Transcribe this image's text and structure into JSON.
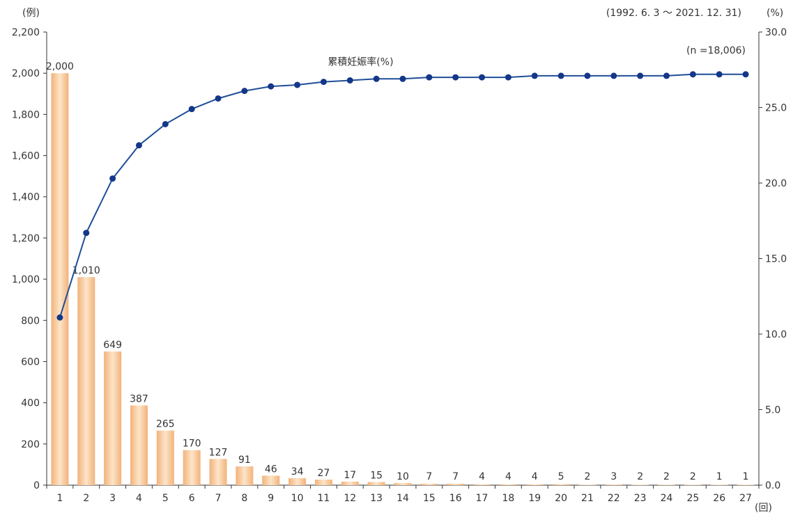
{
  "chart_data": {
    "type": "bar",
    "title": "",
    "period_note": "(1992. 6. 3 ～ 2021. 12. 31)",
    "sample_note": "(n =18,006)",
    "xlabel": "(回)",
    "ylabel_left": "(例)",
    "ylabel_right": "(%)",
    "categories": [
      "1",
      "2",
      "3",
      "4",
      "5",
      "6",
      "7",
      "8",
      "9",
      "10",
      "11",
      "12",
      "13",
      "14",
      "15",
      "16",
      "17",
      "18",
      "19",
      "20",
      "21",
      "22",
      "23",
      "24",
      "25",
      "26",
      "27"
    ],
    "series": [
      {
        "kind": "bar",
        "axis": "left",
        "values": [
          2000,
          1010,
          649,
          387,
          265,
          170,
          127,
          91,
          46,
          34,
          27,
          17,
          15,
          10,
          7,
          7,
          4,
          4,
          4,
          5,
          2,
          3,
          2,
          2,
          2,
          1,
          1
        ],
        "data_labels": [
          "2,000",
          "1,010",
          "649",
          "387",
          "265",
          "170",
          "127",
          "91",
          "46",
          "34",
          "27",
          "17",
          "15",
          "10",
          "7",
          "7",
          "4",
          "4",
          "4",
          "5",
          "2",
          "3",
          "2",
          "2",
          "2",
          "1",
          "1"
        ]
      },
      {
        "kind": "line",
        "axis": "right",
        "name": "累積妊娠率(%)",
        "values": [
          11.1,
          16.7,
          20.3,
          22.5,
          23.9,
          24.9,
          25.6,
          26.1,
          26.4,
          26.5,
          26.7,
          26.8,
          26.9,
          26.9,
          27.0,
          27.0,
          27.0,
          27.0,
          27.1,
          27.1,
          27.1,
          27.1,
          27.1,
          27.1,
          27.2,
          27.2,
          27.2
        ]
      }
    ],
    "ylim_left": [
      0,
      2200
    ],
    "ylim_right": [
      0,
      30
    ],
    "yticks_left": [
      "0",
      "200",
      "400",
      "600",
      "800",
      "1,000",
      "1,200",
      "1,400",
      "1,600",
      "1,800",
      "2,000",
      "2,200"
    ],
    "yticks_right": [
      "0.0",
      "5.0",
      "10.0",
      "15.0",
      "20.0",
      "25.0",
      "30.0"
    ],
    "grid": false,
    "colors": {
      "bar_light": "#fde5c8",
      "bar_dark": "#f2b27a",
      "line": "#1f4e96",
      "marker": "#14378a",
      "axis": "#333333",
      "text": "#333333"
    }
  }
}
